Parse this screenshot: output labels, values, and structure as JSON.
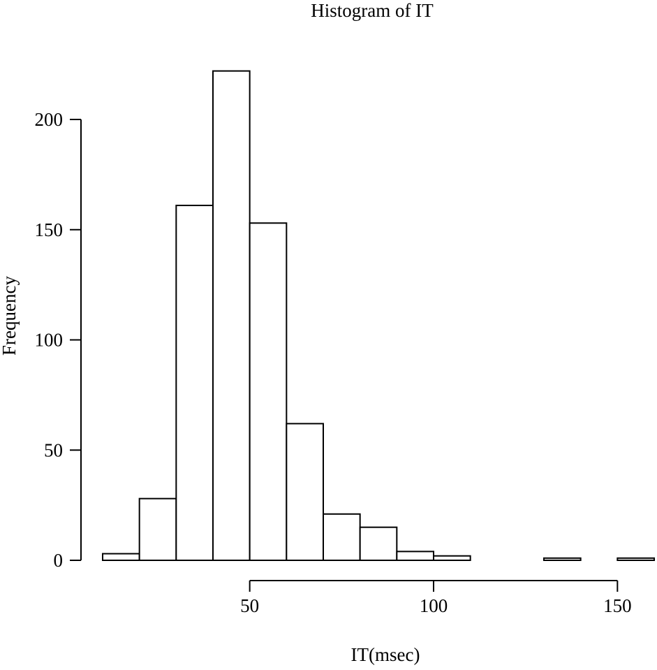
{
  "chart_data": {
    "type": "bar",
    "title": "Histogram of IT",
    "xlabel": "IT(msec)",
    "ylabel": "Frequency",
    "bins": [
      {
        "from": 10,
        "to": 20,
        "count": 3
      },
      {
        "from": 20,
        "to": 30,
        "count": 28
      },
      {
        "from": 30,
        "to": 40,
        "count": 161
      },
      {
        "from": 40,
        "to": 50,
        "count": 222
      },
      {
        "from": 50,
        "to": 60,
        "count": 153
      },
      {
        "from": 60,
        "to": 70,
        "count": 62
      },
      {
        "from": 70,
        "to": 80,
        "count": 21
      },
      {
        "from": 80,
        "to": 90,
        "count": 15
      },
      {
        "from": 90,
        "to": 100,
        "count": 4
      },
      {
        "from": 100,
        "to": 110,
        "count": 2
      },
      {
        "from": 110,
        "to": 120,
        "count": 0
      },
      {
        "from": 120,
        "to": 130,
        "count": 0
      },
      {
        "from": 130,
        "to": 140,
        "count": 1
      },
      {
        "from": 140,
        "to": 150,
        "count": 0
      },
      {
        "from": 150,
        "to": 160,
        "count": 1
      }
    ],
    "xticks": [
      50,
      100,
      150
    ],
    "yticks": [
      0,
      50,
      100,
      150,
      200
    ],
    "xlim": [
      10,
      160
    ],
    "ylim": [
      0,
      222
    ],
    "grid": false,
    "legend": "none"
  }
}
